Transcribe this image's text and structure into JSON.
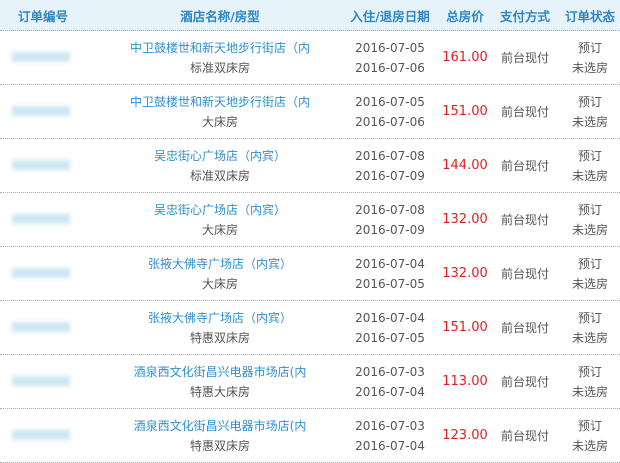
{
  "header": {
    "order_no": "订单编号",
    "hotel": "酒店名称/房型",
    "dates": "入住/退房日期",
    "price": "总房价",
    "payment": "支付方式",
    "status": "订单状态"
  },
  "rows": [
    {
      "hotel": "中卫鼓楼世和新天地步行街店（内",
      "room": "标准双床房",
      "checkin": "2016-07-05",
      "checkout": "2016-07-06",
      "price": "161.00",
      "payment": "前台现付",
      "status1": "预订",
      "status2": "未选房"
    },
    {
      "hotel": "中卫鼓楼世和新天地步行街店（内",
      "room": "大床房",
      "checkin": "2016-07-05",
      "checkout": "2016-07-06",
      "price": "151.00",
      "payment": "前台现付",
      "status1": "预订",
      "status2": "未选房"
    },
    {
      "hotel": "吴忠街心广场店（内宾）",
      "room": "标准双床房",
      "checkin": "2016-07-08",
      "checkout": "2016-07-09",
      "price": "144.00",
      "payment": "前台现付",
      "status1": "预订",
      "status2": "未选房"
    },
    {
      "hotel": "吴忠街心广场店（内宾）",
      "room": "大床房",
      "checkin": "2016-07-08",
      "checkout": "2016-07-09",
      "price": "132.00",
      "payment": "前台现付",
      "status1": "预订",
      "status2": "未选房"
    },
    {
      "hotel": "张掖大佛寺广场店（内宾）",
      "room": "大床房",
      "checkin": "2016-07-04",
      "checkout": "2016-07-05",
      "price": "132.00",
      "payment": "前台现付",
      "status1": "预订",
      "status2": "未选房"
    },
    {
      "hotel": "张掖大佛寺广场店（内宾）",
      "room": "特惠双床房",
      "checkin": "2016-07-04",
      "checkout": "2016-07-05",
      "price": "151.00",
      "payment": "前台现付",
      "status1": "预订",
      "status2": "未选房"
    },
    {
      "hotel": "酒泉西文化街昌兴电器市场店(内",
      "room": "特惠大床房",
      "checkin": "2016-07-03",
      "checkout": "2016-07-04",
      "price": "113.00",
      "payment": "前台现付",
      "status1": "预订",
      "status2": "未选房"
    },
    {
      "hotel": "酒泉西文化街昌兴电器市场店(内",
      "room": "特惠双床房",
      "checkin": "2016-07-03",
      "checkout": "2016-07-04",
      "price": "123.00",
      "payment": "前台现付",
      "status1": "预订",
      "status2": "未选房"
    }
  ]
}
